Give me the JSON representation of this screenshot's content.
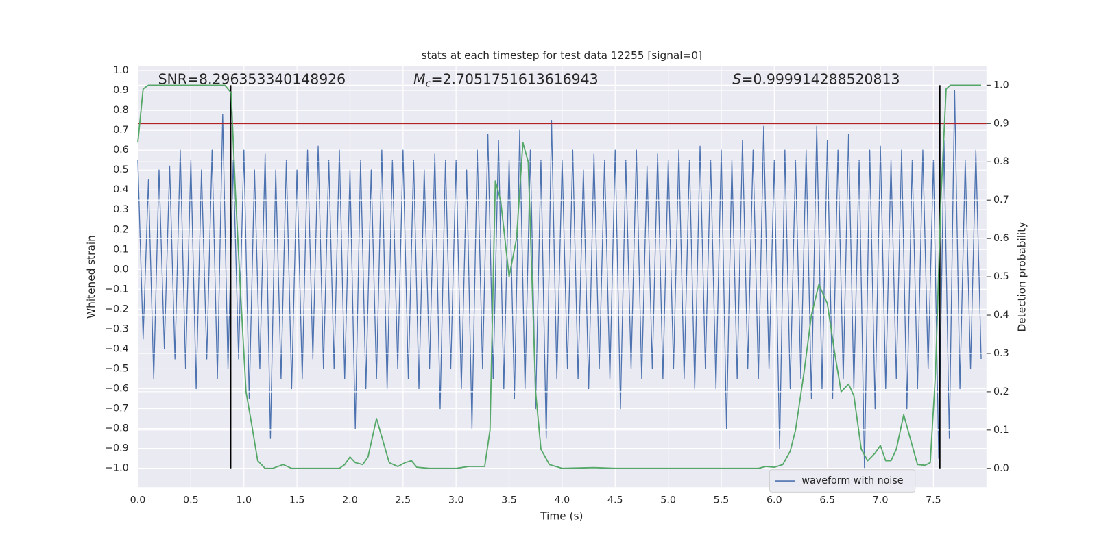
{
  "chart_data": {
    "type": "line",
    "title": "stats at each timestep for test data 12255 [signal=0]",
    "xlabel": "Time (s)",
    "ylabel": "Whitened strain",
    "y2label": "Detection probability",
    "annotations": {
      "snr": "SNR=8.296353340148926",
      "mc_symbol": "M",
      "mc_subscript": "c",
      "mc_text": "=2.7051751613616943",
      "s_symbol": "S",
      "s_text": "=0.999914288520813"
    },
    "xlim": [
      0,
      8.0
    ],
    "ylim": [
      -1.095,
      1.021
    ],
    "y2lim": [
      -0.049,
      1.049
    ],
    "xticks": [
      {
        "value": 0.0,
        "label": "0.0"
      },
      {
        "value": 0.5,
        "label": "0.5"
      },
      {
        "value": 1.0,
        "label": "1.0"
      },
      {
        "value": 1.5,
        "label": "1.5"
      },
      {
        "value": 2.0,
        "label": "2.0"
      },
      {
        "value": 2.5,
        "label": "2.5"
      },
      {
        "value": 3.0,
        "label": "3.0"
      },
      {
        "value": 3.5,
        "label": "3.5"
      },
      {
        "value": 4.0,
        "label": "4.0"
      },
      {
        "value": 4.5,
        "label": "4.5"
      },
      {
        "value": 5.0,
        "label": "5.0"
      },
      {
        "value": 5.5,
        "label": "5.5"
      },
      {
        "value": 6.0,
        "label": "6.0"
      },
      {
        "value": 6.5,
        "label": "6.5"
      },
      {
        "value": 7.0,
        "label": "7.0"
      },
      {
        "value": 7.5,
        "label": "7.5"
      }
    ],
    "yticks": [
      {
        "value": -1.0,
        "label": "−1.0"
      },
      {
        "value": -0.9,
        "label": "−0.9"
      },
      {
        "value": -0.8,
        "label": "−0.8"
      },
      {
        "value": -0.7,
        "label": "−0.7"
      },
      {
        "value": -0.6,
        "label": "−0.6"
      },
      {
        "value": -0.5,
        "label": "−0.5"
      },
      {
        "value": -0.4,
        "label": "−0.4"
      },
      {
        "value": -0.3,
        "label": "−0.3"
      },
      {
        "value": -0.2,
        "label": "−0.2"
      },
      {
        "value": -0.1,
        "label": "−0.1"
      },
      {
        "value": 0.0,
        "label": "0.0"
      },
      {
        "value": 0.1,
        "label": "0.1"
      },
      {
        "value": 0.2,
        "label": "0.2"
      },
      {
        "value": 0.3,
        "label": "0.3"
      },
      {
        "value": 0.4,
        "label": "0.4"
      },
      {
        "value": 0.5,
        "label": "0.5"
      },
      {
        "value": 0.6,
        "label": "0.6"
      },
      {
        "value": 0.7,
        "label": "0.7"
      },
      {
        "value": 0.8,
        "label": "0.8"
      },
      {
        "value": 0.9,
        "label": "0.9"
      },
      {
        "value": 1.0,
        "label": "1.0"
      }
    ],
    "y2ticks": [
      {
        "value": 0.0,
        "label": "0.0"
      },
      {
        "value": 0.1,
        "label": "0.1"
      },
      {
        "value": 0.2,
        "label": "0.2"
      },
      {
        "value": 0.3,
        "label": "0.3"
      },
      {
        "value": 0.4,
        "label": "0.4"
      },
      {
        "value": 0.5,
        "label": "0.5"
      },
      {
        "value": 0.6,
        "label": "0.6"
      },
      {
        "value": 0.7,
        "label": "0.7"
      },
      {
        "value": 0.8,
        "label": "0.8"
      },
      {
        "value": 0.9,
        "label": "0.9"
      },
      {
        "value": 1.0,
        "label": "1.0"
      }
    ],
    "grid": true,
    "legend": "lower right",
    "threshold": {
      "value": 0.9,
      "axis": "y2",
      "color": "#b22222"
    },
    "vlines": {
      "values": [
        0.875,
        7.56
      ],
      "color": "#000000",
      "from": 0.0,
      "to": 1.0,
      "axis": "y2"
    },
    "series": [
      {
        "name": "waveform with noise",
        "color": "#4c72b0",
        "x": [
          0.0,
          0.05,
          0.1,
          0.15,
          0.2,
          0.25,
          0.3,
          0.35,
          0.4,
          0.45,
          0.5,
          0.55,
          0.6,
          0.65,
          0.7,
          0.75,
          0.8,
          0.85,
          0.9,
          0.95,
          1.0,
          1.05,
          1.1,
          1.15,
          1.2,
          1.25,
          1.3,
          1.35,
          1.4,
          1.45,
          1.5,
          1.55,
          1.6,
          1.65,
          1.7,
          1.75,
          1.8,
          1.85,
          1.9,
          1.95,
          2.0,
          2.05,
          2.1,
          2.15,
          2.2,
          2.25,
          2.3,
          2.35,
          2.4,
          2.45,
          2.5,
          2.55,
          2.6,
          2.65,
          2.7,
          2.75,
          2.8,
          2.85,
          2.9,
          2.95,
          3.0,
          3.05,
          3.1,
          3.15,
          3.2,
          3.25,
          3.3,
          3.35,
          3.4,
          3.45,
          3.5,
          3.55,
          3.6,
          3.65,
          3.7,
          3.75,
          3.8,
          3.85,
          3.9,
          3.95,
          4.0,
          4.05,
          4.1,
          4.15,
          4.2,
          4.25,
          4.3,
          4.35,
          4.4,
          4.45,
          4.5,
          4.55,
          4.6,
          4.65,
          4.7,
          4.75,
          4.8,
          4.85,
          4.9,
          4.95,
          5.0,
          5.05,
          5.1,
          5.15,
          5.2,
          5.25,
          5.3,
          5.35,
          5.4,
          5.45,
          5.5,
          5.55,
          5.6,
          5.65,
          5.7,
          5.75,
          5.8,
          5.85,
          5.9,
          5.95,
          6.0,
          6.05,
          6.1,
          6.15,
          6.2,
          6.25,
          6.3,
          6.35,
          6.4,
          6.45,
          6.5,
          6.55,
          6.6,
          6.65,
          6.7,
          6.75,
          6.8,
          6.85,
          6.9,
          6.95,
          7.0,
          7.05,
          7.1,
          7.15,
          7.2,
          7.25,
          7.3,
          7.35,
          7.4,
          7.45,
          7.5,
          7.55,
          7.6,
          7.65,
          7.7,
          7.75,
          7.8,
          7.85,
          7.9,
          7.95
        ],
        "values": [
          0.55,
          -0.35,
          0.45,
          -0.55,
          0.5,
          -0.4,
          0.52,
          -0.45,
          0.6,
          -0.5,
          0.55,
          -0.6,
          0.5,
          -0.45,
          0.6,
          -0.55,
          0.78,
          -0.5,
          0.55,
          -0.45,
          0.6,
          -0.65,
          0.5,
          -0.5,
          0.58,
          -0.85,
          0.5,
          -0.55,
          0.55,
          -0.6,
          0.5,
          -0.55,
          0.6,
          -0.45,
          0.62,
          -0.5,
          0.55,
          -0.5,
          0.6,
          -0.55,
          0.5,
          -0.8,
          0.55,
          -0.6,
          0.5,
          -0.55,
          0.6,
          -0.6,
          0.55,
          -0.5,
          0.6,
          -0.55,
          0.55,
          -0.6,
          0.5,
          -0.5,
          0.58,
          -0.7,
          0.55,
          -0.5,
          0.55,
          -0.6,
          0.5,
          -0.8,
          0.6,
          -0.5,
          0.68,
          -0.55,
          0.65,
          -0.6,
          0.55,
          -0.65,
          0.7,
          -0.6,
          0.6,
          -0.7,
          0.55,
          -0.85,
          0.75,
          -0.55,
          0.55,
          -0.5,
          0.6,
          -0.55,
          0.5,
          -0.6,
          0.58,
          -0.5,
          0.55,
          -0.55,
          0.6,
          -0.7,
          0.55,
          -0.5,
          0.6,
          -0.55,
          0.52,
          -0.5,
          0.58,
          -0.55,
          0.55,
          -0.5,
          0.6,
          -0.55,
          0.55,
          -0.6,
          0.62,
          -0.5,
          0.55,
          -0.6,
          0.6,
          -0.8,
          0.55,
          -0.55,
          0.65,
          -0.5,
          0.6,
          -0.55,
          0.72,
          -0.5,
          0.55,
          -0.9,
          0.6,
          -0.6,
          0.55,
          -0.55,
          0.6,
          -0.65,
          0.72,
          -0.6,
          0.65,
          -0.65,
          0.6,
          -0.55,
          0.68,
          -0.6,
          0.55,
          -1.0,
          0.6,
          -0.7,
          0.62,
          -0.6,
          0.55,
          -0.55,
          0.6,
          -0.7,
          0.55,
          -0.6,
          0.6,
          -0.5,
          0.55,
          -0.95,
          0.65,
          -0.85,
          0.9,
          -0.6,
          0.55,
          -0.5,
          0.6,
          -0.45
        ]
      },
      {
        "color": "#55a868",
        "axis": "y2",
        "x": [
          0,
          0.05,
          0.1,
          0.3,
          0.5,
          0.7,
          0.82,
          0.88,
          0.92,
          0.97,
          1.02,
          1.07,
          1.13,
          1.2,
          1.27,
          1.37,
          1.45,
          1.55,
          1.7,
          1.9,
          1.95,
          2.0,
          2.05,
          2.12,
          2.17,
          2.25,
          2.37,
          2.45,
          2.52,
          2.58,
          2.63,
          2.75,
          3.0,
          3.12,
          3.27,
          3.32,
          3.37,
          3.42,
          3.5,
          3.57,
          3.63,
          3.68,
          3.75,
          3.8,
          3.88,
          4.0,
          4.3,
          4.5,
          5.0,
          5.5,
          5.85,
          5.92,
          6.0,
          6.08,
          6.15,
          6.2,
          6.28,
          6.35,
          6.42,
          6.5,
          6.57,
          6.63,
          6.7,
          6.75,
          6.82,
          6.88,
          6.95,
          7.0,
          7.05,
          7.1,
          7.15,
          7.22,
          7.3,
          7.35,
          7.42,
          7.47,
          7.52,
          7.57,
          7.62,
          7.66,
          7.95
        ],
        "values": [
          0.85,
          0.99,
          1.0,
          1.0,
          1.0,
          1.0,
          1.0,
          0.98,
          0.72,
          0.45,
          0.2,
          0.12,
          0.02,
          0.0,
          0.0,
          0.01,
          0.0,
          0.0,
          0.0,
          0.0,
          0.01,
          0.03,
          0.015,
          0.01,
          0.03,
          0.13,
          0.015,
          0.005,
          0.015,
          0.02,
          0.003,
          0.0,
          0.0,
          0.005,
          0.005,
          0.1,
          0.75,
          0.7,
          0.5,
          0.6,
          0.85,
          0.8,
          0.2,
          0.05,
          0.01,
          0.0,
          0.002,
          0.0,
          0.0,
          0.0,
          0.0,
          0.005,
          0.003,
          0.01,
          0.045,
          0.1,
          0.25,
          0.4,
          0.48,
          0.43,
          0.3,
          0.2,
          0.22,
          0.19,
          0.05,
          0.02,
          0.04,
          0.06,
          0.02,
          0.02,
          0.05,
          0.14,
          0.06,
          0.01,
          0.008,
          0.015,
          0.25,
          0.7,
          0.99,
          1.0,
          1.0
        ]
      }
    ]
  }
}
